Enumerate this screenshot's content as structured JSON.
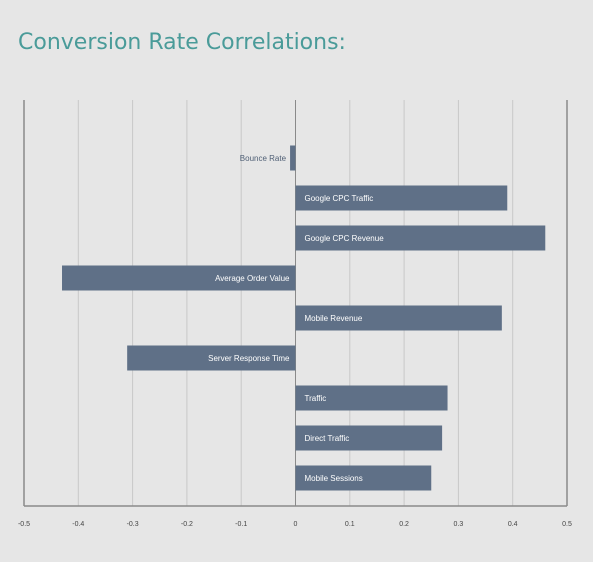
{
  "slide": {
    "title": "Conversion Rate Correlations:"
  },
  "colors": {
    "title": "#4a9b99",
    "bar": "#5f7087",
    "bar_label_outside": "#4f5f75",
    "bar_label_inside": "#ffffff",
    "grid": "#c8c8c8",
    "axis": "#8a8a8a",
    "background": "#e6e6e6"
  },
  "chart_data": {
    "type": "bar",
    "orientation": "horizontal",
    "title": "",
    "xlabel": "",
    "ylabel": "",
    "xlim": [
      -0.5,
      0.5
    ],
    "x_ticks": [
      -0.5,
      -0.4,
      -0.3,
      -0.2,
      -0.1,
      0,
      0.1,
      0.2,
      0.3,
      0.4,
      0.5
    ],
    "x_tick_labels": [
      "-0.5",
      "-0.4",
      "-0.3",
      "-0.2",
      "-0.1",
      "0",
      "0.1",
      "0.2",
      "0.3",
      "0.4",
      "0.5"
    ],
    "grid": true,
    "legend": "none",
    "categories": [
      "Bounce Rate",
      "Google CPC Traffic",
      "Google CPC Revenue",
      "Average Order Value",
      "Mobile Revenue",
      "Server Response Time",
      "Traffic",
      "Direct Traffic",
      "Mobile Sessions"
    ],
    "values": [
      -0.01,
      0.39,
      0.46,
      -0.43,
      0.38,
      -0.31,
      0.28,
      0.27,
      0.25
    ]
  }
}
